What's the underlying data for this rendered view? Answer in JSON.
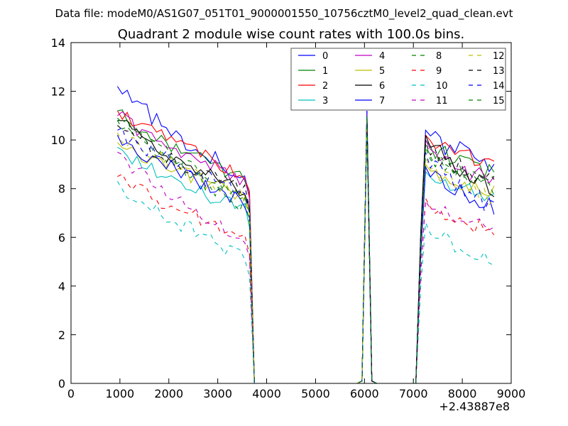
{
  "chart_data": {
    "type": "line",
    "suptitle": "Data file: modeM0/AS1G07_051T01_9000001550_10756cztM0_level2_quad_clean.evt",
    "title": "Quadrant 2 module wise count rates with 100.0s bins.",
    "xlabel": "",
    "ylabel": "",
    "x_offset_label": "+2.43887e8",
    "xlim": [
      0,
      9000
    ],
    "ylim": [
      0,
      14
    ],
    "xticks": [
      "0",
      "1000",
      "2000",
      "3000",
      "4000",
      "5000",
      "6000",
      "7000",
      "8000",
      "9000"
    ],
    "yticks": [
      "0",
      "2",
      "4",
      "6",
      "8",
      "10",
      "12",
      "14"
    ],
    "grid": false,
    "legend_position": "top-right",
    "segments": [
      {
        "x_start": 950,
        "x_end": 3650,
        "step": 100
      },
      {
        "x_start": 3750,
        "x_end": 5850,
        "step": 100,
        "zero": true
      },
      {
        "x": [
          5950,
          6050,
          6150,
          6250
        ]
      },
      {
        "x_start": 6350,
        "x_end": 7050,
        "step": 100,
        "zero": true
      },
      {
        "x_start": 7150,
        "x_end": 8650,
        "step": 100
      }
    ],
    "series": [
      {
        "name": "0",
        "style": "solid",
        "color": "#0000ff",
        "seg1_start": 12.2,
        "seg1_end": 8.3,
        "peak": 11.2,
        "seg3_start": 10.4,
        "seg3_end": 9.0,
        "jitter": 0.4
      },
      {
        "name": "1",
        "style": "solid",
        "color": "#008000",
        "seg1_start": 11.2,
        "seg1_end": 8.3,
        "peak": 11.0,
        "seg3_start": 10.0,
        "seg3_end": 8.6,
        "jitter": 0.35
      },
      {
        "name": "2",
        "style": "solid",
        "color": "#ff0000",
        "seg1_start": 11.2,
        "seg1_end": 8.5,
        "peak": 11.0,
        "seg3_start": 10.2,
        "seg3_end": 9.0,
        "jitter": 0.3
      },
      {
        "name": "3",
        "style": "solid",
        "color": "#00bfbf",
        "seg1_start": 9.7,
        "seg1_end": 7.0,
        "peak": 10.8,
        "seg3_start": 8.7,
        "seg3_end": 7.6,
        "jitter": 0.3
      },
      {
        "name": "4",
        "style": "solid",
        "color": "#bf00bf",
        "seg1_start": 11.0,
        "seg1_end": 8.2,
        "peak": 11.1,
        "seg3_start": 10.0,
        "seg3_end": 8.2,
        "jitter": 0.35
      },
      {
        "name": "5",
        "style": "solid",
        "color": "#bfbf00",
        "seg1_start": 9.9,
        "seg1_end": 7.6,
        "peak": 10.9,
        "seg3_start": 9.0,
        "seg3_end": 7.8,
        "jitter": 0.3
      },
      {
        "name": "6",
        "style": "solid",
        "color": "#000000",
        "seg1_start": 10.8,
        "seg1_end": 7.8,
        "peak": 11.0,
        "seg3_start": 10.2,
        "seg3_end": 8.0,
        "jitter": 0.35
      },
      {
        "name": "7",
        "style": "solid",
        "color": "#0000ff",
        "seg1_start": 10.2,
        "seg1_end": 7.4,
        "peak": 11.0,
        "seg3_start": 8.9,
        "seg3_end": 7.2,
        "jitter": 0.35
      },
      {
        "name": "8",
        "style": "dashed",
        "color": "#008000",
        "seg1_start": 10.9,
        "seg1_end": 7.2,
        "peak": 11.0,
        "seg3_start": 9.8,
        "seg3_end": 7.9,
        "jitter": 0.35
      },
      {
        "name": "9",
        "style": "dashed",
        "color": "#ff0000",
        "seg1_start": 8.5,
        "seg1_end": 5.9,
        "peak": 10.6,
        "seg3_start": 7.6,
        "seg3_end": 6.2,
        "jitter": 0.3
      },
      {
        "name": "10",
        "style": "dashed",
        "color": "#00bfbf",
        "seg1_start": 8.3,
        "seg1_end": 5.0,
        "peak": 10.2,
        "seg3_start": 6.6,
        "seg3_end": 4.9,
        "jitter": 0.35
      },
      {
        "name": "11",
        "style": "dashed",
        "color": "#bf00bf",
        "seg1_start": 9.5,
        "seg1_end": 5.8,
        "peak": 10.5,
        "seg3_start": 7.5,
        "seg3_end": 6.4,
        "jitter": 0.3
      },
      {
        "name": "12",
        "style": "dashed",
        "color": "#bfbf00",
        "seg1_start": 10.3,
        "seg1_end": 7.6,
        "peak": 10.8,
        "seg3_start": 9.3,
        "seg3_end": 7.5,
        "jitter": 0.3
      },
      {
        "name": "13",
        "style": "dashed",
        "color": "#000000",
        "seg1_start": 10.6,
        "seg1_end": 7.8,
        "peak": 10.9,
        "seg3_start": 9.9,
        "seg3_end": 8.2,
        "jitter": 0.35
      },
      {
        "name": "14",
        "style": "dashed",
        "color": "#0000ff",
        "seg1_start": 10.4,
        "seg1_end": 7.6,
        "peak": 11.2,
        "seg3_start": 9.5,
        "seg3_end": 7.2,
        "jitter": 0.35
      },
      {
        "name": "15",
        "style": "dashed",
        "color": "#008000",
        "seg1_start": 10.8,
        "seg1_end": 7.6,
        "peak": 11.0,
        "seg3_start": 9.7,
        "seg3_end": 8.2,
        "jitter": 0.35
      }
    ]
  }
}
